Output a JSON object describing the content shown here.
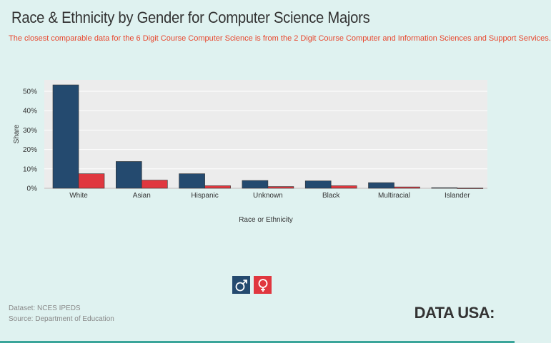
{
  "header": {
    "title": "Race & Ethnicity by Gender for Computer Science Majors",
    "subtitle": "The closest comparable data for the 6 Digit Course Computer Science is from the 2 Digit Course Computer and Information Sciences and Support Services."
  },
  "colors": {
    "men": "#244a6f",
    "women": "#e0373f",
    "plot_bg": "#ececec",
    "grid": "#ffffff"
  },
  "chart_data": {
    "type": "bar",
    "title": "Race & Ethnicity by Gender for Computer Science Majors",
    "xlabel": "Race or Ethnicity",
    "ylabel": "Share",
    "ylim": [
      0,
      55
    ],
    "yticks": [
      "0%",
      "10%",
      "20%",
      "30%",
      "40%",
      "50%"
    ],
    "ytick_values": [
      0,
      10,
      20,
      30,
      40,
      50
    ],
    "categories": [
      "White",
      "Asian",
      "Hispanic",
      "Unknown",
      "Black",
      "Multiracial",
      "Islander"
    ],
    "series": [
      {
        "name": "Men",
        "values": [
          53.3,
          13.8,
          7.5,
          4.0,
          3.8,
          2.9,
          0.3
        ]
      },
      {
        "name": "Women",
        "values": [
          7.5,
          4.2,
          1.3,
          0.9,
          1.3,
          0.7,
          0.1
        ]
      }
    ],
    "legend": "bottom-center"
  },
  "legend": {
    "men_icon": "male-icon",
    "women_icon": "female-icon"
  },
  "footer": {
    "dataset": "Dataset: NCES IPEDS",
    "source": "Source: Department of Education",
    "brand": "DATA USA:"
  }
}
